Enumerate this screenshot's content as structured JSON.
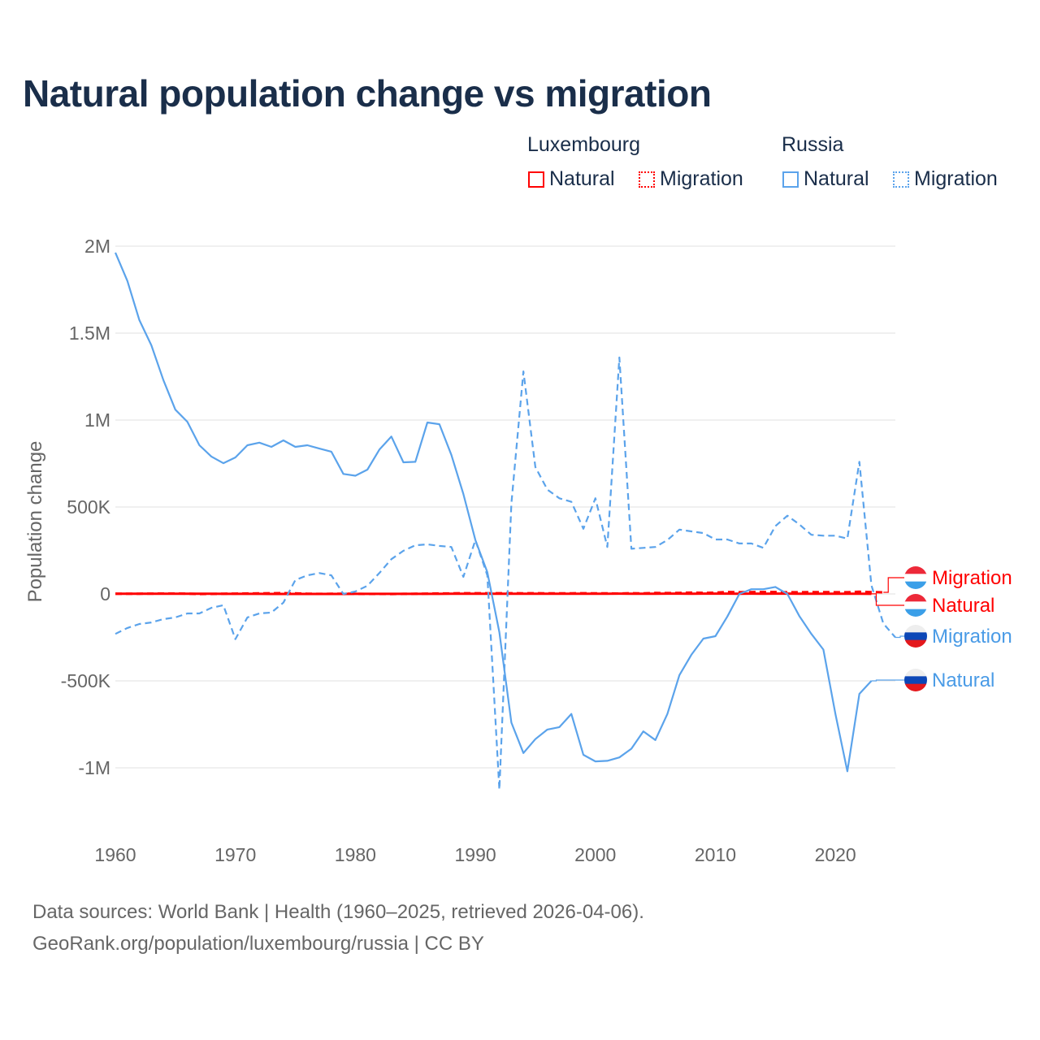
{
  "chart_data": {
    "type": "line",
    "title": "Natural population change vs migration",
    "ylabel": "Population change",
    "xlabel": "",
    "xlim": [
      1960,
      2025
    ],
    "ylim": [
      -1200000,
      2000000
    ],
    "x_ticks": [
      "1960",
      "1970",
      "1980",
      "1990",
      "2000",
      "2010",
      "2020"
    ],
    "y_ticks": [
      {
        "value": 2000000,
        "label": "2M"
      },
      {
        "value": 1500000,
        "label": "1.5M"
      },
      {
        "value": 1000000,
        "label": "1M"
      },
      {
        "value": 500000,
        "label": "500K"
      },
      {
        "value": 0,
        "label": "0"
      },
      {
        "value": -500000,
        "label": "-500K"
      },
      {
        "value": -1000000,
        "label": "-1M"
      }
    ],
    "grid": true,
    "legend": {
      "placement": "top-right",
      "groups": [
        {
          "name": "Luxembourg",
          "items": [
            "Natural",
            "Migration"
          ]
        },
        {
          "name": "Russia",
          "items": [
            "Natural",
            "Migration"
          ]
        }
      ]
    },
    "series": [
      {
        "name": "Luxembourg Natural",
        "country": "Luxembourg",
        "kind": "Natural",
        "label": "Natural",
        "color": "#ff0000",
        "dash": "solid",
        "start_year": 1960,
        "values": [
          1500,
          1600,
          1500,
          1500,
          1600,
          1400,
          1200,
          1000,
          800,
          600,
          500,
          400,
          300,
          200,
          100,
          0,
          100,
          0,
          100,
          200,
          400,
          500,
          600,
          500,
          400,
          400,
          600,
          700,
          800,
          900,
          1200,
          1300,
          1400,
          1200,
          1300,
          1500,
          1500,
          1300,
          1200,
          1300,
          1500,
          1600,
          1700,
          1300,
          1600,
          1500,
          1700,
          1700,
          1600,
          1800,
          2000,
          1800,
          1600,
          1700,
          1600,
          1800,
          1800,
          1600,
          1500,
          1600,
          1200,
          1300,
          1100,
          700
        ]
      },
      {
        "name": "Luxembourg Migration",
        "country": "Luxembourg",
        "kind": "Migration",
        "label": "Migration",
        "color": "#ff0000",
        "dash": "dashed",
        "start_year": 1960,
        "values": [
          1000,
          1200,
          1500,
          2000,
          2500,
          2200,
          1500,
          -500,
          200,
          1500,
          2000,
          3000,
          3500,
          4000,
          4500,
          3500,
          1500,
          500,
          800,
          1200,
          1000,
          200,
          -200,
          -300,
          300,
          900,
          2000,
          3000,
          3500,
          4000,
          4000,
          4000,
          4200,
          4000,
          3800,
          4000,
          3500,
          3500,
          3700,
          4000,
          3500,
          3500,
          2500,
          4000,
          3500,
          5500,
          5000,
          6000,
          7700,
          6000,
          7500,
          11000,
          10000,
          10600,
          11000,
          11000,
          9800,
          10000,
          10900,
          10800,
          9900,
          10000,
          12700,
          10900,
          9500
        ]
      },
      {
        "name": "Russia Natural",
        "country": "Russia",
        "kind": "Natural",
        "label": "Natural",
        "color": "#5ba3eb",
        "dash": "solid",
        "start_year": 1960,
        "values": [
          1963000,
          1800000,
          1575000,
          1430000,
          1230000,
          1060000,
          990000,
          855000,
          790000,
          752000,
          785000,
          855000,
          870000,
          846000,
          883000,
          846000,
          855000,
          836000,
          818000,
          690000,
          680000,
          715000,
          830000,
          905000,
          757000,
          760000,
          986000,
          976000,
          800000,
          575000,
          310000,
          125000,
          -220000,
          -740000,
          -915000,
          -835000,
          -780000,
          -766000,
          -690000,
          -925000,
          -963000,
          -960000,
          -940000,
          -890000,
          -790000,
          -840000,
          -690000,
          -467000,
          -350000,
          -257000,
          -243000,
          -130000,
          0,
          27000,
          27000,
          40000,
          0,
          -127000,
          -230000,
          -320000,
          -690000,
          -1020000,
          -575000,
          -500000
        ]
      },
      {
        "name": "Russia Migration",
        "country": "Russia",
        "kind": "Migration",
        "label": "Migration",
        "color": "#5ba3eb",
        "dash": "dashed",
        "start_year": 1960,
        "values": [
          -230000,
          -196000,
          -173000,
          -164000,
          -145000,
          -135000,
          -112000,
          -112000,
          -80000,
          -65000,
          -260000,
          -135000,
          -112000,
          -107000,
          -50000,
          80000,
          107000,
          120000,
          107000,
          0,
          14000,
          47000,
          120000,
          200000,
          248000,
          280000,
          285000,
          276000,
          270000,
          98000,
          310000,
          107000,
          -1125000,
          520000,
          1280000,
          730000,
          600000,
          550000,
          530000,
          375000,
          550000,
          270000,
          1360000,
          260000,
          265000,
          270000,
          310000,
          370000,
          360000,
          350000,
          313000,
          313000,
          290000,
          290000,
          265000,
          390000,
          450000,
          400000,
          340000,
          335000,
          335000,
          318000,
          760000,
          50000,
          -170000,
          -250000
        ]
      }
    ]
  },
  "footer": {
    "line1": "Data sources: World Bank | Health (1960–2025, retrieved 2026-04-06).",
    "line2": "GeoRank.org/population/luxembourg/russia | CC BY"
  }
}
